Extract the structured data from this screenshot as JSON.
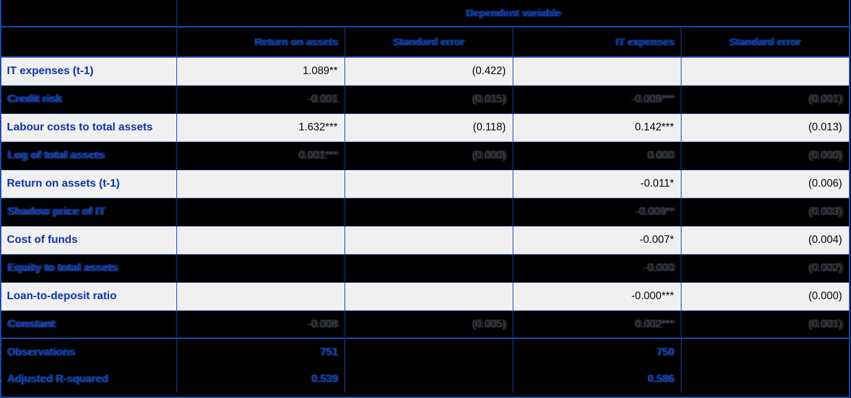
{
  "table_title": "Dependent variable",
  "columns": {
    "col_roa": "Return on assets",
    "col_roa_se": "Standard error",
    "col_it": "IT expenses",
    "col_it_se": "Standard error"
  },
  "rows": [
    {
      "label": "IT expenses (t-1)",
      "roa": "1.089**",
      "roa_se": "(0.422)",
      "it": "",
      "it_se": "",
      "dimmed": false
    },
    {
      "label": "Credit risk",
      "roa": "-0.001",
      "roa_se": "(0.015)",
      "it": "-0.009***",
      "it_se": "(0.001)",
      "dimmed": true
    },
    {
      "label": "Labour costs to total assets",
      "roa": "1.632***",
      "roa_se": "(0.118)",
      "it": "0.142***",
      "it_se": "(0.013)",
      "dimmed": false
    },
    {
      "label": "Log of total assets",
      "roa": "0.001***",
      "roa_se": "(0.000)",
      "it": "0.000",
      "it_se": "(0.000)",
      "dimmed": true
    },
    {
      "label": "Return on assets (t-1)",
      "roa": "",
      "roa_se": "",
      "it": "-0.011*",
      "it_se": "(0.006)",
      "dimmed": false
    },
    {
      "label": "Shadow price of IT",
      "roa": "",
      "roa_se": "",
      "it": "-0.009**",
      "it_se": "(0.003)",
      "dimmed": true
    },
    {
      "label": "Cost of funds",
      "roa": "",
      "roa_se": "",
      "it": "-0.007*",
      "it_se": "(0.004)",
      "dimmed": false
    },
    {
      "label": "Equity to total assets",
      "roa": "",
      "roa_se": "",
      "it": "-0.000",
      "it_se": "(0.002)",
      "dimmed": true
    },
    {
      "label": "Loan-to-deposit ratio",
      "roa": "",
      "roa_se": "",
      "it": "-0.000***",
      "it_se": "(0.000)",
      "dimmed": false
    },
    {
      "label": "Constant",
      "roa": "-0.008",
      "roa_se": "(0.005)",
      "it": "0.002***",
      "it_se": "(0.001)",
      "dimmed": true
    }
  ],
  "summary": [
    {
      "label": "Observations",
      "roa": "751",
      "it": "750"
    },
    {
      "label": "Adjusted R-squared",
      "roa": "0.539",
      "it": "0.586"
    }
  ],
  "colors": {
    "background": "#000000",
    "light_row": "#f0f0f0",
    "grid_line": "#1c49b4",
    "label_blue": "#0d33a8",
    "summary_blue": "#1647b0",
    "dim_value": "#3a4a63"
  }
}
